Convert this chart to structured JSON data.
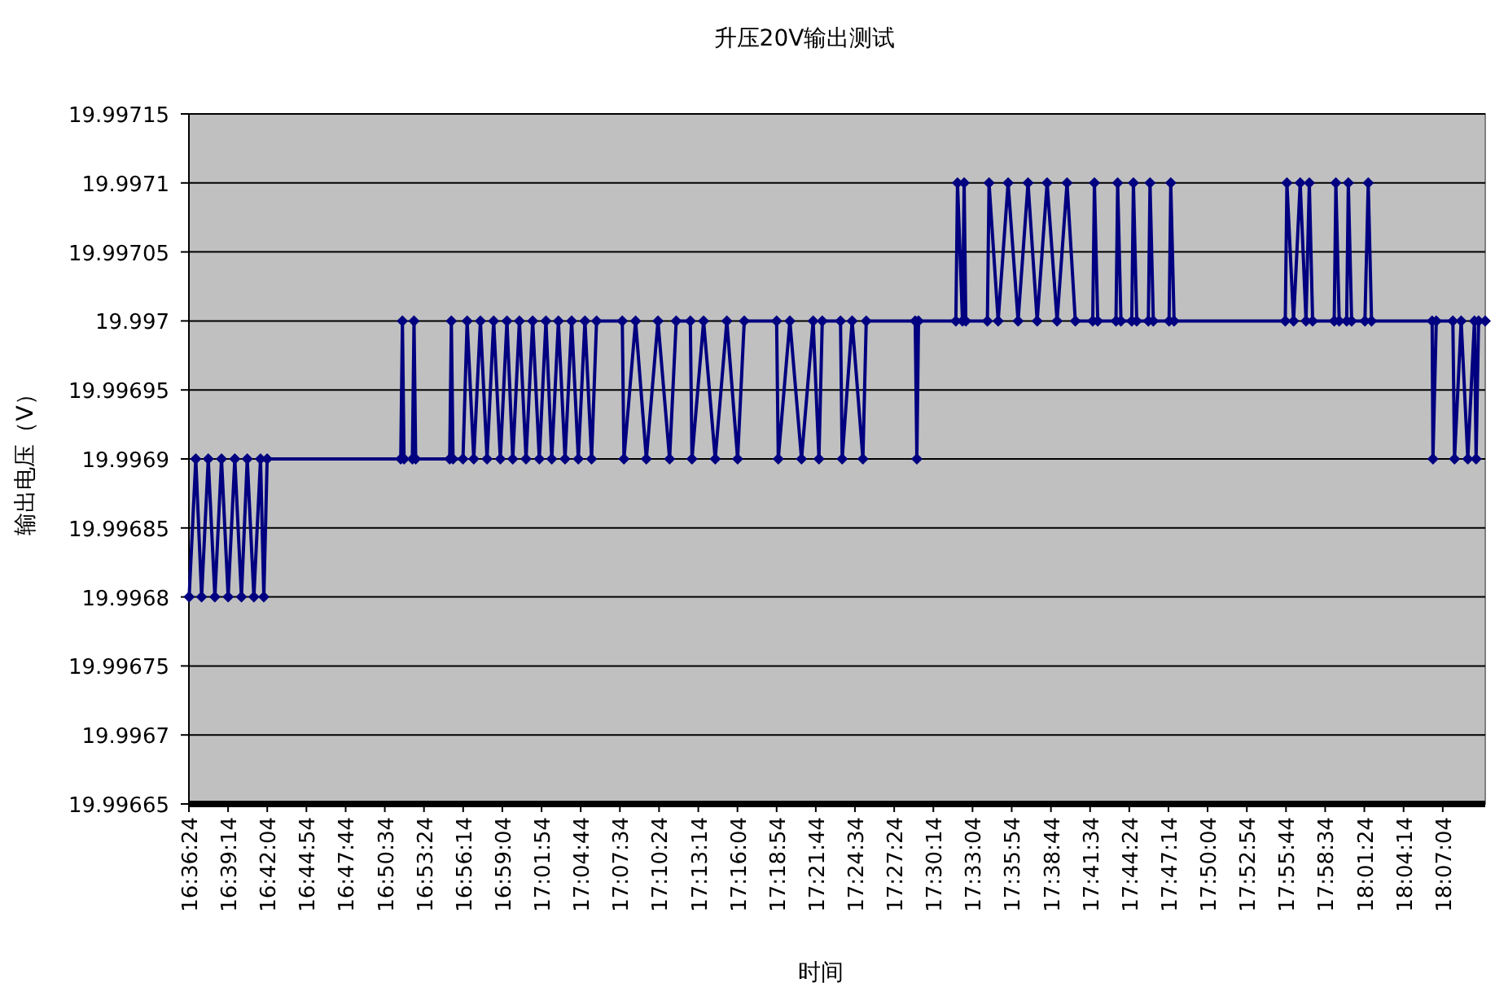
{
  "chart_data": {
    "type": "line",
    "title": "升压20V输出测试",
    "xlabel": "时间",
    "ylabel": "输出电压（V）",
    "x": [
      16.607,
      16.615,
      16.622,
      16.63,
      16.638,
      16.646,
      16.654,
      16.662,
      16.67,
      16.677,
      16.685,
      16.693,
      16.697,
      16.701,
      16.862,
      16.864,
      16.866,
      16.876,
      16.878,
      16.88,
      16.921,
      16.923,
      16.925,
      16.937,
      16.942,
      16.95,
      16.958,
      16.966,
      16.974,
      16.982,
      16.99,
      16.997,
      17.005,
      17.013,
      17.021,
      17.029,
      17.037,
      17.044,
      17.052,
      17.06,
      17.068,
      17.076,
      17.084,
      17.092,
      17.098,
      17.129,
      17.131,
      17.145,
      17.158,
      17.172,
      17.186,
      17.194,
      17.211,
      17.213,
      17.227,
      17.241,
      17.255,
      17.268,
      17.276,
      17.315,
      17.317,
      17.331,
      17.345,
      17.359,
      17.366,
      17.37,
      17.392,
      17.394,
      17.406,
      17.419,
      17.423,
      17.482,
      17.484,
      17.486,
      17.531,
      17.533,
      17.539,
      17.541,
      17.543,
      17.569,
      17.571,
      17.582,
      17.594,
      17.606,
      17.618,
      17.629,
      17.641,
      17.653,
      17.665,
      17.675,
      17.696,
      17.698,
      17.702,
      17.724,
      17.726,
      17.73,
      17.743,
      17.745,
      17.749,
      17.763,
      17.765,
      17.769,
      17.788,
      17.79,
      17.794,
      17.928,
      17.93,
      17.938,
      17.946,
      17.953,
      17.957,
      17.961,
      17.987,
      17.989,
      17.993,
      18.002,
      18.004,
      18.008,
      18.024,
      18.028,
      18.032,
      18.105,
      18.106,
      18.11,
      18.13,
      18.132,
      18.14,
      18.148,
      18.156,
      18.158,
      18.161,
      18.169
    ],
    "series": [
      {
        "color": "#000080",
        "values": [
          19.9968,
          19.9969,
          19.9968,
          19.9969,
          19.9968,
          19.9969,
          19.9968,
          19.9969,
          19.9968,
          19.9969,
          19.9968,
          19.9969,
          19.9968,
          19.9969,
          19.9969,
          19.997,
          19.9969,
          19.9969,
          19.997,
          19.9969,
          19.9969,
          19.997,
          19.9969,
          19.9969,
          19.997,
          19.9969,
          19.997,
          19.9969,
          19.997,
          19.9969,
          19.997,
          19.9969,
          19.997,
          19.9969,
          19.997,
          19.9969,
          19.997,
          19.9969,
          19.997,
          19.9969,
          19.997,
          19.9969,
          19.997,
          19.9969,
          19.997,
          19.997,
          19.9969,
          19.997,
          19.9969,
          19.997,
          19.9969,
          19.997,
          19.997,
          19.9969,
          19.997,
          19.9969,
          19.997,
          19.9969,
          19.997,
          19.997,
          19.9969,
          19.997,
          19.9969,
          19.997,
          19.9969,
          19.997,
          19.997,
          19.9969,
          19.997,
          19.9969,
          19.997,
          19.997,
          19.9969,
          19.997,
          19.997,
          19.9971,
          19.997,
          19.9971,
          19.997,
          19.997,
          19.9971,
          19.997,
          19.9971,
          19.997,
          19.9971,
          19.997,
          19.9971,
          19.997,
          19.9971,
          19.997,
          19.997,
          19.9971,
          19.997,
          19.997,
          19.9971,
          19.997,
          19.997,
          19.9971,
          19.997,
          19.997,
          19.9971,
          19.997,
          19.997,
          19.9971,
          19.997,
          19.997,
          19.9971,
          19.997,
          19.9971,
          19.997,
          19.9971,
          19.997,
          19.997,
          19.9971,
          19.997,
          19.997,
          19.9971,
          19.997,
          19.997,
          19.9971,
          19.997,
          19.997,
          19.9969,
          19.997,
          19.997,
          19.9969,
          19.997,
          19.9969,
          19.997,
          19.9969,
          19.997,
          19.997
        ]
      }
    ],
    "xlim": [
      16.6067,
      18.169
    ],
    "ylim": [
      19.99665,
      19.99715
    ],
    "yticks": [
      19.99665,
      19.9967,
      19.99675,
      19.9968,
      19.99685,
      19.9969,
      19.99695,
      19.997,
      19.99705,
      19.9971,
      19.99715
    ],
    "xticks": [
      {
        "value": 16.6067,
        "label": "16:36:24"
      },
      {
        "value": 16.6539,
        "label": "16:39:14"
      },
      {
        "value": 16.7011,
        "label": "16:42:04"
      },
      {
        "value": 16.7483,
        "label": "16:44:54"
      },
      {
        "value": 16.7956,
        "label": "16:47:44"
      },
      {
        "value": 16.8428,
        "label": "16:50:34"
      },
      {
        "value": 16.89,
        "label": "16:53:24"
      },
      {
        "value": 16.9372,
        "label": "16:56:14"
      },
      {
        "value": 16.9844,
        "label": "16:59:04"
      },
      {
        "value": 17.0317,
        "label": "17:01:54"
      },
      {
        "value": 17.0789,
        "label": "17:04:44"
      },
      {
        "value": 17.1261,
        "label": "17:07:34"
      },
      {
        "value": 17.1733,
        "label": "17:10:24"
      },
      {
        "value": 17.2206,
        "label": "17:13:14"
      },
      {
        "value": 17.2678,
        "label": "17:16:04"
      },
      {
        "value": 17.315,
        "label": "17:18:54"
      },
      {
        "value": 17.3622,
        "label": "17:21:44"
      },
      {
        "value": 17.4094,
        "label": "17:24:34"
      },
      {
        "value": 17.4567,
        "label": "17:27:24"
      },
      {
        "value": 17.5039,
        "label": "17:30:14"
      },
      {
        "value": 17.5511,
        "label": "17:33:04"
      },
      {
        "value": 17.5983,
        "label": "17:35:54"
      },
      {
        "value": 17.6456,
        "label": "17:38:44"
      },
      {
        "value": 17.6928,
        "label": "17:41:34"
      },
      {
        "value": 17.74,
        "label": "17:44:24"
      },
      {
        "value": 17.7872,
        "label": "17:47:14"
      },
      {
        "value": 17.8344,
        "label": "17:50:04"
      },
      {
        "value": 17.8817,
        "label": "17:52:54"
      },
      {
        "value": 17.9289,
        "label": "17:55:44"
      },
      {
        "value": 17.9761,
        "label": "17:58:34"
      },
      {
        "value": 18.0233,
        "label": "18:01:24"
      },
      {
        "value": 18.0706,
        "label": "18:04:14"
      },
      {
        "value": 18.1178,
        "label": "18:07:04"
      }
    ],
    "grid": "y",
    "marker": "diamond"
  }
}
